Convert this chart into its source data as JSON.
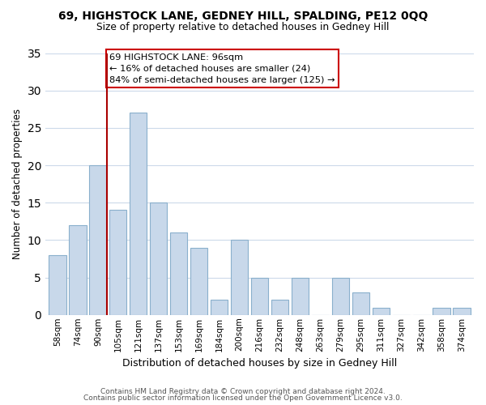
{
  "title": "69, HIGHSTOCK LANE, GEDNEY HILL, SPALDING, PE12 0QQ",
  "subtitle": "Size of property relative to detached houses in Gedney Hill",
  "xlabel": "Distribution of detached houses by size in Gedney Hill",
  "ylabel": "Number of detached properties",
  "bar_labels": [
    "58sqm",
    "74sqm",
    "90sqm",
    "105sqm",
    "121sqm",
    "137sqm",
    "153sqm",
    "169sqm",
    "184sqm",
    "200sqm",
    "216sqm",
    "232sqm",
    "248sqm",
    "263sqm",
    "279sqm",
    "295sqm",
    "311sqm",
    "327sqm",
    "342sqm",
    "358sqm",
    "374sqm"
  ],
  "bar_values": [
    8,
    12,
    20,
    14,
    27,
    15,
    11,
    9,
    2,
    10,
    5,
    2,
    5,
    0,
    5,
    3,
    1,
    0,
    0,
    1,
    1
  ],
  "bar_color": "#c8d8ea",
  "bar_edge_color": "#8ab0cc",
  "ylim": [
    0,
    35
  ],
  "yticks": [
    0,
    5,
    10,
    15,
    20,
    25,
    30,
    35
  ],
  "vline_color": "#aa0000",
  "annotation_line1": "69 HIGHSTOCK LANE: 96sqm",
  "annotation_line2": "← 16% of detached houses are smaller (24)",
  "annotation_line3": "84% of semi-detached houses are larger (125) →",
  "annotation_box_color": "#ffffff",
  "annotation_box_edge_color": "#cc0000",
  "footer_line1": "Contains HM Land Registry data © Crown copyright and database right 2024.",
  "footer_line2": "Contains public sector information licensed under the Open Government Licence v3.0.",
  "background_color": "#ffffff",
  "grid_color": "#ccdaea"
}
